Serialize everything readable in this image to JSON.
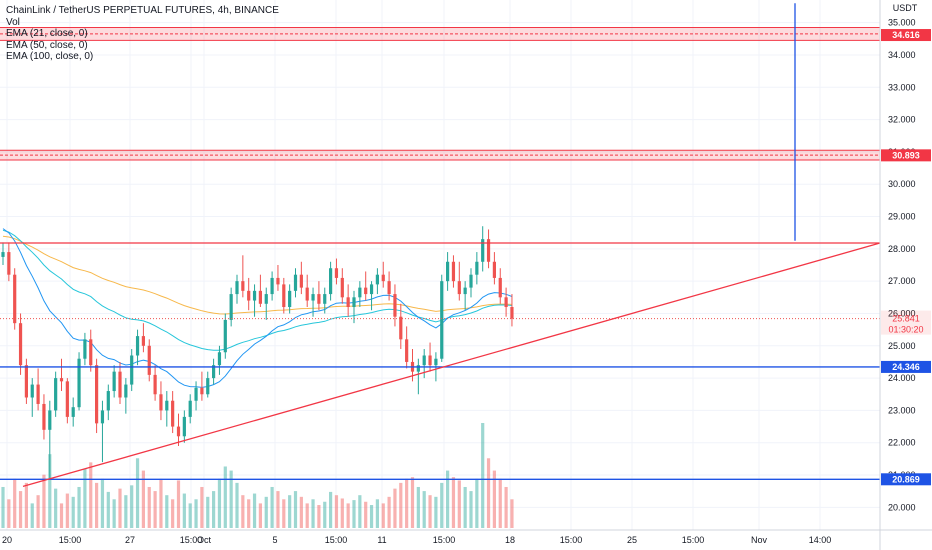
{
  "legend": {
    "title": "ChainLink / TetherUS PERPETUAL FUTURES, 4h, BINANCE",
    "vol": "Vol",
    "ema21": "EMA (21, close, 0)",
    "ema50": "EMA (50, close, 0)",
    "ema100": "EMA (100, close, 0)"
  },
  "currency_label": "USDT",
  "colors": {
    "up": "#26a69a",
    "down": "#ef5350",
    "ema21": "#2196f3",
    "ema50": "#26c6da",
    "ema100": "#f7b84b",
    "horizontal_blue": "#1e53e5",
    "trend_red": "#f23645"
  },
  "chart_data": {
    "type": "candlestick",
    "y_axis": {
      "range": [
        19.3,
        35.7
      ],
      "ticks": [
        "35.000",
        "34.000",
        "33.000",
        "32.000",
        "31.000",
        "30.000",
        "29.000",
        "28.000",
        "27.000",
        "26.000",
        "25.000",
        "24.000",
        "23.000",
        "22.000",
        "21.000",
        "20.000"
      ]
    },
    "x_axis": {
      "ticks": [
        "20",
        "15:00",
        "27",
        "15:00",
        "Oct",
        "5",
        "15:00",
        "11",
        "15:00",
        "18",
        "15:00",
        "25",
        "15:00",
        "Nov",
        "14:00"
      ]
    },
    "price_tags": [
      {
        "label": "34.616",
        "value": 34.616,
        "color": "#f23645"
      },
      {
        "label": "30.893",
        "value": 30.893,
        "color": "#f23645"
      },
      {
        "label": "25.841",
        "value": 25.841,
        "color": "#f23645",
        "sub": "01:30:20",
        "plain": true
      },
      {
        "label": "24.346",
        "value": 24.346,
        "color": "#1e53e5"
      },
      {
        "label": "20.869",
        "value": 20.869,
        "color": "#1e53e5"
      }
    ],
    "resistance_zones": [
      {
        "low": 34.45,
        "high": 34.85
      },
      {
        "low": 30.75,
        "high": 31.05
      }
    ],
    "horizontal_lines": [
      {
        "value": 24.346,
        "color": "#1e53e5"
      },
      {
        "value": 20.869,
        "color": "#1e53e5"
      },
      {
        "value": 28.18,
        "color": "#f23645",
        "from": "start",
        "to": "apex"
      }
    ],
    "trendline": {
      "from_bar": 5,
      "from_value": 20.65,
      "to_value": 28.18,
      "color": "#f23645"
    },
    "projection": {
      "value_from": 28.25,
      "value_to": 35.6,
      "color": "#1e53e5"
    },
    "last_price": 25.841,
    "countdown": "01:30:20",
    "ohlc": [
      [
        27.75,
        28.2,
        27.5,
        27.9
      ],
      [
        27.9,
        28.2,
        27.0,
        27.2
      ],
      [
        27.2,
        27.4,
        25.5,
        25.7
      ],
      [
        25.7,
        26.0,
        24.1,
        24.4
      ],
      [
        24.4,
        24.6,
        23.2,
        23.4
      ],
      [
        23.4,
        24.0,
        22.8,
        23.8
      ],
      [
        23.8,
        24.3,
        23.0,
        23.2
      ],
      [
        23.2,
        23.5,
        22.1,
        22.4
      ],
      [
        22.4,
        23.3,
        20.9,
        23.0
      ],
      [
        23.0,
        24.2,
        22.8,
        24.0
      ],
      [
        24.0,
        24.6,
        23.6,
        23.9
      ],
      [
        23.9,
        24.0,
        22.6,
        22.8
      ],
      [
        22.8,
        23.4,
        22.5,
        23.1
      ],
      [
        23.1,
        24.8,
        23.0,
        24.6
      ],
      [
        24.6,
        25.4,
        24.4,
        25.2
      ],
      [
        25.2,
        25.5,
        24.2,
        24.4
      ],
      [
        24.4,
        24.6,
        22.3,
        22.6
      ],
      [
        22.6,
        23.3,
        21.4,
        23.0
      ],
      [
        23.0,
        23.8,
        22.7,
        23.6
      ],
      [
        23.6,
        24.4,
        23.4,
        24.2
      ],
      [
        24.2,
        24.5,
        23.2,
        23.4
      ],
      [
        23.4,
        24.0,
        22.9,
        23.8
      ],
      [
        23.8,
        24.9,
        23.6,
        24.7
      ],
      [
        24.7,
        25.5,
        24.4,
        25.3
      ],
      [
        25.3,
        25.7,
        24.8,
        25.0
      ],
      [
        25.0,
        25.2,
        23.9,
        24.1
      ],
      [
        24.1,
        24.4,
        23.3,
        23.5
      ],
      [
        23.5,
        23.9,
        22.7,
        23.0
      ],
      [
        23.0,
        23.6,
        22.5,
        23.3
      ],
      [
        23.3,
        23.6,
        22.3,
        22.5
      ],
      [
        22.5,
        22.9,
        21.9,
        22.2
      ],
      [
        22.2,
        23.0,
        22.0,
        22.8
      ],
      [
        22.8,
        23.5,
        22.6,
        23.3
      ],
      [
        23.3,
        23.9,
        23.0,
        23.7
      ],
      [
        23.7,
        24.2,
        23.3,
        23.5
      ],
      [
        23.5,
        24.2,
        23.4,
        24.0
      ],
      [
        24.0,
        24.6,
        23.8,
        24.4
      ],
      [
        24.4,
        25.0,
        24.1,
        24.8
      ],
      [
        24.8,
        26.0,
        24.6,
        25.8
      ],
      [
        25.8,
        26.8,
        25.6,
        26.6
      ],
      [
        26.6,
        27.2,
        26.3,
        27.0
      ],
      [
        27.0,
        27.8,
        26.5,
        26.7
      ],
      [
        26.7,
        27.1,
        26.1,
        26.4
      ],
      [
        26.4,
        26.9,
        25.9,
        26.7
      ],
      [
        26.7,
        27.2,
        26.2,
        26.3
      ],
      [
        26.3,
        26.8,
        25.8,
        26.6
      ],
      [
        26.6,
        27.3,
        26.4,
        27.1
      ],
      [
        27.1,
        27.5,
        26.7,
        26.9
      ],
      [
        26.9,
        27.1,
        26.0,
        26.2
      ],
      [
        26.2,
        26.9,
        26.0,
        26.7
      ],
      [
        26.7,
        27.4,
        26.5,
        27.2
      ],
      [
        27.2,
        27.6,
        26.6,
        26.8
      ],
      [
        26.8,
        27.2,
        26.2,
        26.4
      ],
      [
        26.4,
        26.8,
        25.9,
        26.6
      ],
      [
        26.6,
        27.0,
        26.1,
        26.3
      ],
      [
        26.3,
        26.8,
        26.0,
        26.6
      ],
      [
        26.6,
        27.6,
        26.4,
        27.4
      ],
      [
        27.4,
        27.7,
        26.9,
        27.1
      ],
      [
        27.1,
        27.4,
        26.3,
        26.5
      ],
      [
        26.5,
        26.9,
        25.9,
        26.2
      ],
      [
        26.2,
        26.7,
        25.7,
        26.5
      ],
      [
        26.5,
        27.0,
        26.2,
        26.8
      ],
      [
        26.8,
        27.3,
        26.4,
        26.6
      ],
      [
        26.6,
        27.0,
        26.1,
        26.9
      ],
      [
        26.9,
        27.4,
        26.6,
        27.2
      ],
      [
        27.2,
        27.6,
        26.8,
        27.0
      ],
      [
        27.0,
        27.3,
        26.4,
        26.6
      ],
      [
        26.6,
        26.9,
        25.6,
        25.9
      ],
      [
        25.9,
        26.3,
        24.9,
        25.2
      ],
      [
        25.2,
        25.6,
        24.3,
        24.5
      ],
      [
        24.5,
        24.9,
        23.9,
        24.2
      ],
      [
        24.2,
        24.6,
        23.5,
        24.4
      ],
      [
        24.4,
        24.9,
        24.0,
        24.7
      ],
      [
        24.7,
        25.1,
        24.2,
        24.4
      ],
      [
        24.4,
        24.8,
        23.9,
        24.6
      ],
      [
        24.6,
        27.2,
        24.5,
        27.0
      ],
      [
        27.0,
        27.9,
        26.7,
        27.6
      ],
      [
        27.6,
        27.8,
        26.8,
        27.0
      ],
      [
        27.0,
        27.6,
        26.4,
        26.6
      ],
      [
        26.6,
        27.0,
        26.1,
        26.8
      ],
      [
        26.8,
        27.4,
        26.5,
        27.2
      ],
      [
        27.2,
        27.9,
        26.9,
        27.6
      ],
      [
        27.6,
        28.7,
        27.3,
        28.3
      ],
      [
        28.3,
        28.6,
        27.4,
        27.6
      ],
      [
        27.6,
        27.9,
        26.9,
        27.1
      ],
      [
        27.1,
        27.4,
        26.3,
        26.5
      ],
      [
        26.5,
        26.8,
        25.9,
        26.2
      ],
      [
        26.2,
        26.6,
        25.6,
        25.841
      ]
    ],
    "volume": [
      50,
      35,
      60,
      45,
      55,
      30,
      40,
      65,
      90,
      48,
      30,
      42,
      38,
      50,
      72,
      80,
      55,
      60,
      44,
      35,
      48,
      40,
      52,
      85,
      70,
      50,
      45,
      60,
      40,
      35,
      58,
      42,
      30,
      35,
      50,
      38,
      45,
      60,
      75,
      70,
      55,
      40,
      35,
      42,
      30,
      38,
      50,
      45,
      35,
      40,
      45,
      38,
      30,
      35,
      28,
      32,
      44,
      40,
      36,
      30,
      34,
      40,
      32,
      28,
      35,
      30,
      38,
      48,
      55,
      60,
      62,
      50,
      45,
      40,
      38,
      55,
      70,
      62,
      58,
      50,
      45,
      60,
      128,
      85,
      70,
      60,
      50,
      35
    ]
  }
}
